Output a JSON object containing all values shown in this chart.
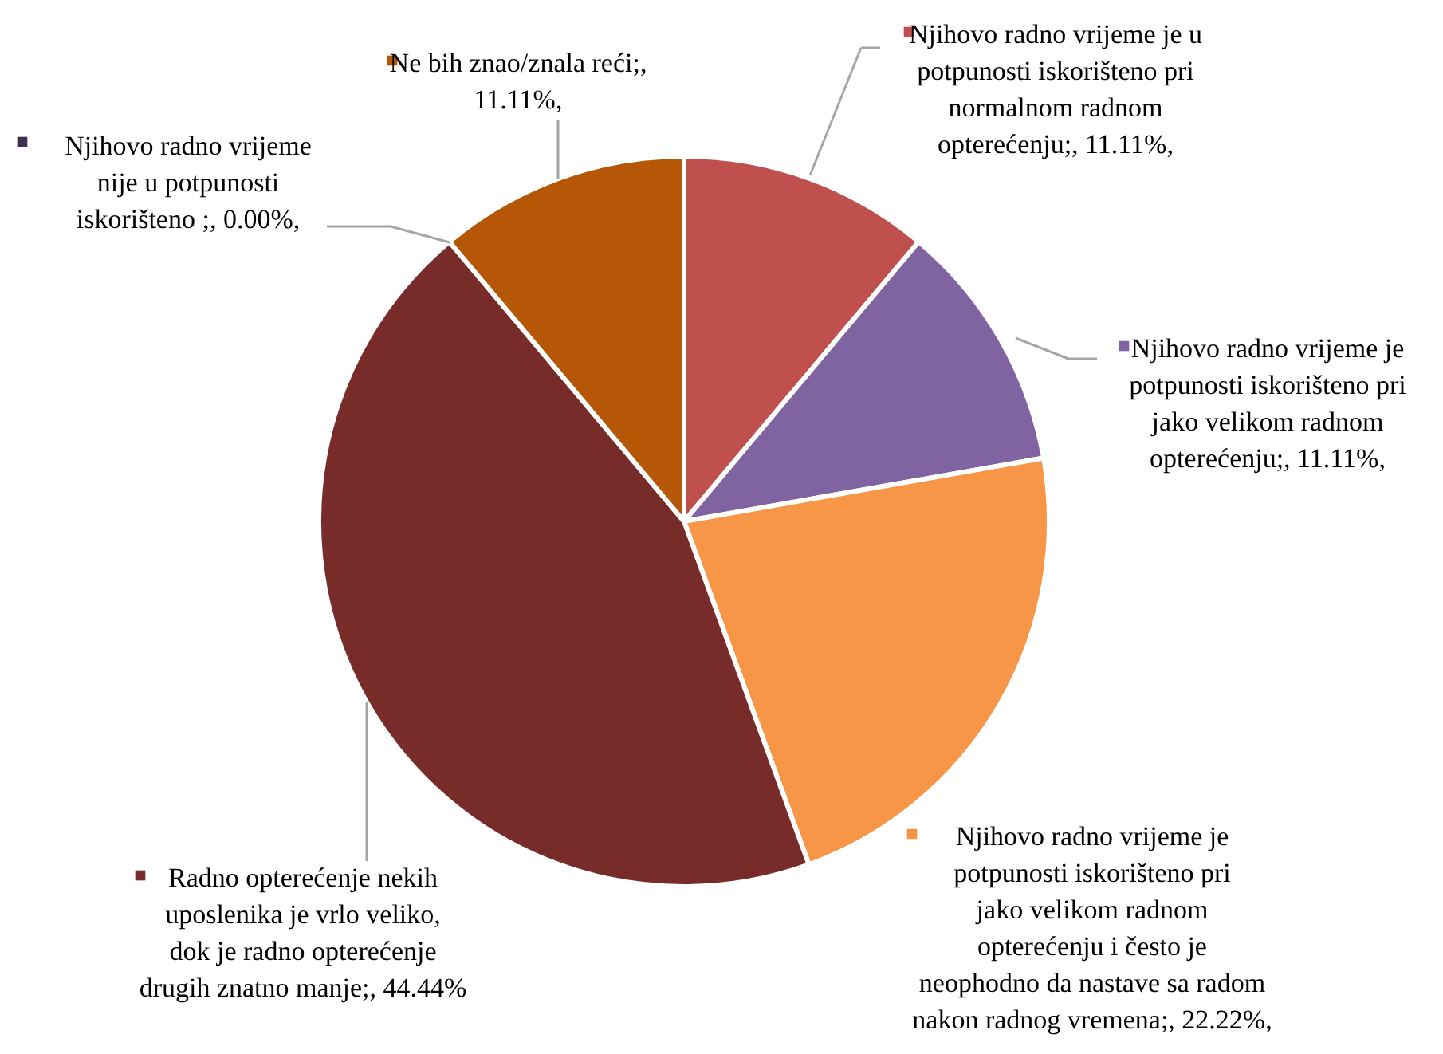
{
  "chart_data": {
    "type": "pie",
    "categories": [
      "Njihovo radno vrijeme je u potpunosti iskorišteno pri normalnom radnom opterećenju",
      "Njihovo radno vrijeme je potpunosti iskorišteno pri jako velikom radnom opterećenju",
      "Njihovo radno vrijeme je potpunosti iskorišteno pri jako velikom radnom opterećenju i često je neophodno da nastave sa radom nakon radnog vremena",
      "Radno opterećenje nekih uposlenika je vrlo veliko, dok je radno opterećenje drugih znatno manje",
      "Njihovo radno vrijeme nije u potpunosti iskorišteno ",
      "Ne bih znao/znala reći"
    ],
    "values": [
      11.11,
      11.11,
      22.22,
      44.44,
      0.0,
      11.11
    ],
    "value_labels": [
      ";, 11.11%,",
      ";, 11.11%,",
      ";, 22.22%,",
      ";, 44.44%",
      ";, 0.00%,",
      ";, 11.11%,"
    ],
    "legend": "right",
    "colors": [
      "#c0504d",
      "#8064a2",
      "#f79646",
      "#772c2a",
      "#3f3151",
      "#b65708"
    ]
  }
}
